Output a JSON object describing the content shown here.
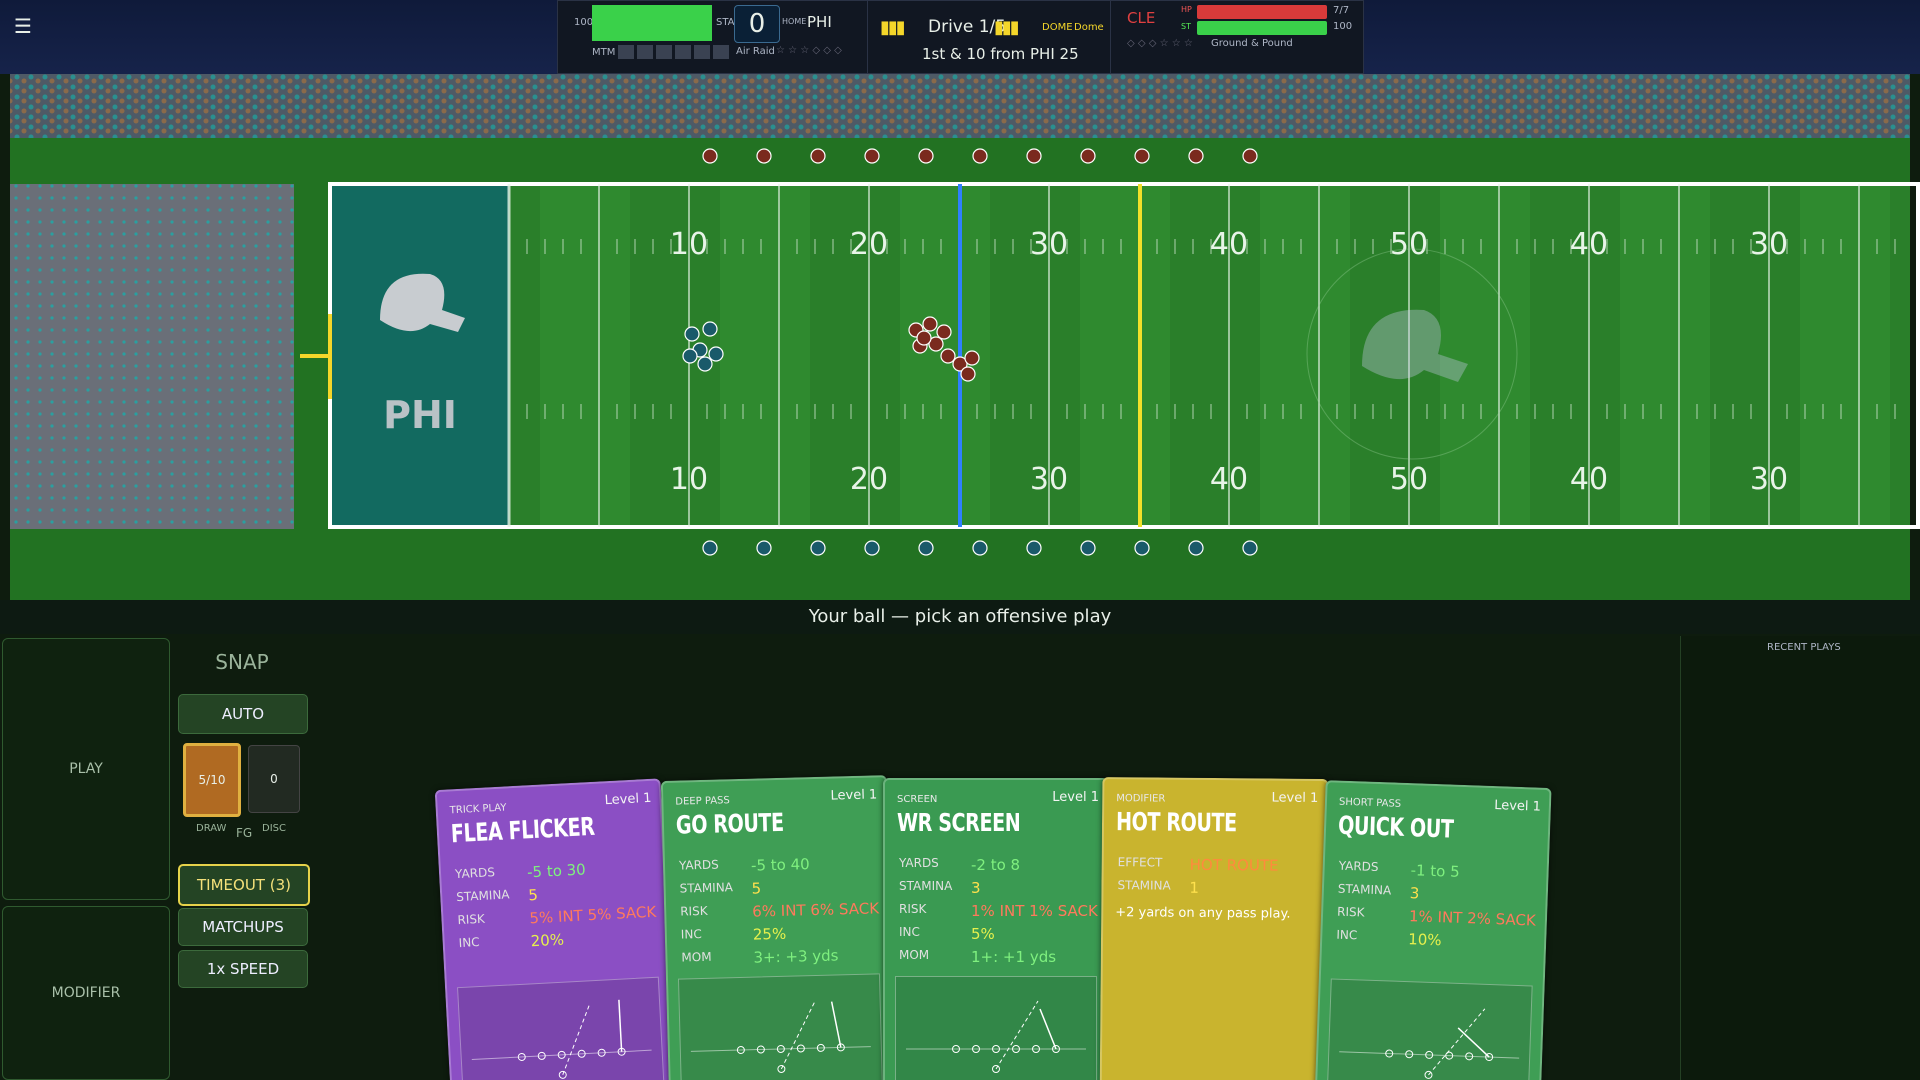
{
  "hud": {
    "menu": "☰",
    "home_hp": "100",
    "home_sta": "STA",
    "score": "0",
    "home_label": "HOME",
    "home_team": "PHI",
    "mtm": "MTM",
    "home_playbook": "Air Raid",
    "drive": "Drive 1/5",
    "dome_label": "DOME",
    "dome_name": "Dome",
    "down": "1st & 10 from PHI 25",
    "away_team": "CLE",
    "hp_label": "HP",
    "st_label": "ST",
    "away_hp": "7/7",
    "away_st": "100",
    "away_playbook": "Ground & Pound"
  },
  "field": {
    "endzone": "PHI",
    "top_numbers": [
      "10",
      "20",
      "30",
      "40",
      "50",
      "40",
      "30"
    ],
    "bottom_numbers": [
      "10",
      "20",
      "30",
      "40",
      "50",
      "40",
      "30"
    ]
  },
  "status": "Your ball — pick an offensive play",
  "controls": {
    "play": "PLAY",
    "modifier": "MODIFIER",
    "snap": "SNAP",
    "auto": "AUTO",
    "draw": "5/10",
    "disc": "0",
    "draw_label": "DRAW",
    "fg_label": "FG",
    "disc_label": "DISC",
    "timeout": "TIMEOUT (3)",
    "matchups": "MATCHUPS",
    "speed": "1x SPEED"
  },
  "recent_plays": "RECENT PLAYS",
  "cards": [
    {
      "kind": "TRICK PLAY",
      "level": "Level 1",
      "name": "FLEA FLICKER",
      "color": "#8b4fc4",
      "rows": [
        {
          "label": "YARDS",
          "value": "-5 to 30",
          "color": "#7ff07f"
        },
        {
          "label": "STAMINA",
          "value": "5",
          "color": "#ffe14d"
        },
        {
          "label": "RISK",
          "value": "5% INT  5% SACK",
          "color": "#ff7a5c"
        },
        {
          "label": "INC",
          "value": "20%",
          "color": "#e6f04d"
        }
      ]
    },
    {
      "kind": "DEEP PASS",
      "level": "Level 1",
      "name": "GO ROUTE",
      "color": "#3f9e55",
      "rows": [
        {
          "label": "YARDS",
          "value": "-5 to 40",
          "color": "#7ff07f"
        },
        {
          "label": "STAMINA",
          "value": "5",
          "color": "#ffe14d"
        },
        {
          "label": "RISK",
          "value": "6% INT  6% SACK",
          "color": "#ff7a5c"
        },
        {
          "label": "INC",
          "value": "25%",
          "color": "#e6f04d"
        },
        {
          "label": "MOM",
          "value": "3+: +3 yds",
          "color": "#7ff07f"
        }
      ]
    },
    {
      "kind": "SCREEN",
      "level": "Level 1",
      "name": "WR SCREEN",
      "color": "#3a9a52",
      "rows": [
        {
          "label": "YARDS",
          "value": "-2 to 8",
          "color": "#7ff07f"
        },
        {
          "label": "STAMINA",
          "value": "3",
          "color": "#ffe14d"
        },
        {
          "label": "RISK",
          "value": "1% INT  1% SACK",
          "color": "#ff7a5c"
        },
        {
          "label": "INC",
          "value": "5%",
          "color": "#e6f04d"
        },
        {
          "label": "MOM",
          "value": "1+: +1 yds",
          "color": "#7ff07f"
        }
      ]
    },
    {
      "kind": "MODIFIER",
      "level": "Level 1",
      "name": "HOT ROUTE",
      "color": "#c9b42e",
      "rows": [
        {
          "label": "EFFECT",
          "value": "HOT ROUTE",
          "color": "#ff8a3d"
        },
        {
          "label": "STAMINA",
          "value": "1",
          "color": "#ffe14d"
        }
      ],
      "description": "+2 yards on any pass play."
    },
    {
      "kind": "SHORT PASS",
      "level": "Level 1",
      "name": "QUICK OUT",
      "color": "#3f9e55",
      "rows": [
        {
          "label": "YARDS",
          "value": "-1 to 5",
          "color": "#7ff07f"
        },
        {
          "label": "STAMINA",
          "value": "3",
          "color": "#ffe14d"
        },
        {
          "label": "RISK",
          "value": "1% INT  2% SACK",
          "color": "#ff7a5c"
        },
        {
          "label": "INC",
          "value": "10%",
          "color": "#e6f04d"
        }
      ]
    }
  ]
}
